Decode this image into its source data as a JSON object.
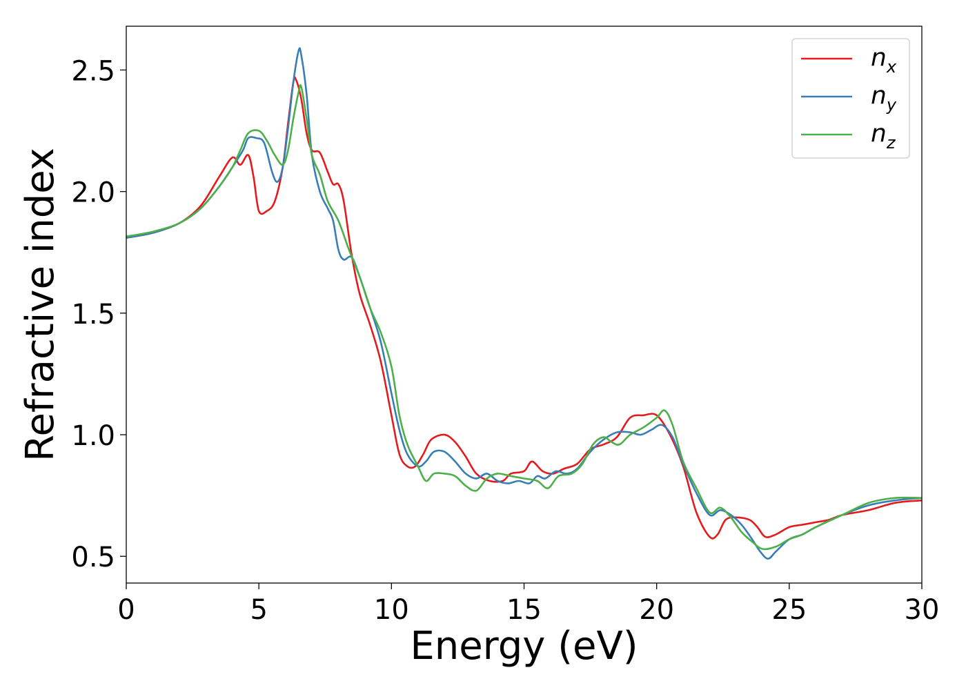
{
  "chart_data": {
    "type": "line",
    "title": "",
    "xlabel": "Energy (eV)",
    "ylabel": "Refractive index",
    "xlim": [
      0,
      30
    ],
    "ylim": [
      0.39,
      2.68
    ],
    "xticks": [
      0,
      5,
      10,
      15,
      20,
      25,
      30
    ],
    "xtick_labels": [
      "0",
      "5",
      "10",
      "15",
      "20",
      "25",
      "30"
    ],
    "yticks": [
      0.5,
      1.0,
      1.5,
      2.0,
      2.5
    ],
    "ytick_labels": [
      "0.5",
      "1.0",
      "1.5",
      "2.0",
      "2.5"
    ],
    "grid": false,
    "legend_position": "top-right",
    "series": [
      {
        "name": "n_x",
        "label_main": "n",
        "label_sub": "x",
        "color": "#e41a1c",
        "points": [
          [
            0,
            1.81
          ],
          [
            1,
            1.83
          ],
          [
            2,
            1.87
          ],
          [
            2.8,
            1.94
          ],
          [
            3.5,
            2.06
          ],
          [
            4,
            2.14
          ],
          [
            4.3,
            2.11
          ],
          [
            4.6,
            2.15
          ],
          [
            4.8,
            2.06
          ],
          [
            5.0,
            1.92
          ],
          [
            5.3,
            1.92
          ],
          [
            5.6,
            1.96
          ],
          [
            5.9,
            2.1
          ],
          [
            6.1,
            2.28
          ],
          [
            6.3,
            2.45
          ],
          [
            6.4,
            2.46
          ],
          [
            6.6,
            2.38
          ],
          [
            6.8,
            2.24
          ],
          [
            7.0,
            2.17
          ],
          [
            7.3,
            2.16
          ],
          [
            7.6,
            2.08
          ],
          [
            7.8,
            2.03
          ],
          [
            8.0,
            2.03
          ],
          [
            8.2,
            1.96
          ],
          [
            8.5,
            1.74
          ],
          [
            8.8,
            1.58
          ],
          [
            9.2,
            1.45
          ],
          [
            9.6,
            1.3
          ],
          [
            10.0,
            1.08
          ],
          [
            10.3,
            0.92
          ],
          [
            10.6,
            0.87
          ],
          [
            10.9,
            0.87
          ],
          [
            11.2,
            0.92
          ],
          [
            11.5,
            0.98
          ],
          [
            12.0,
            1.0
          ],
          [
            12.4,
            0.97
          ],
          [
            12.8,
            0.91
          ],
          [
            13.2,
            0.84
          ],
          [
            13.7,
            0.81
          ],
          [
            14.2,
            0.81
          ],
          [
            14.5,
            0.84
          ],
          [
            15.0,
            0.85
          ],
          [
            15.3,
            0.89
          ],
          [
            15.7,
            0.85
          ],
          [
            16.1,
            0.84
          ],
          [
            16.5,
            0.86
          ],
          [
            17.0,
            0.88
          ],
          [
            17.5,
            0.94
          ],
          [
            18.0,
            0.96
          ],
          [
            18.5,
            0.99
          ],
          [
            19.0,
            1.07
          ],
          [
            19.5,
            1.08
          ],
          [
            20.0,
            1.08
          ],
          [
            20.5,
            1.0
          ],
          [
            21.0,
            0.87
          ],
          [
            21.5,
            0.68
          ],
          [
            22.0,
            0.58
          ],
          [
            22.3,
            0.59
          ],
          [
            22.6,
            0.65
          ],
          [
            23.0,
            0.66
          ],
          [
            23.5,
            0.65
          ],
          [
            23.8,
            0.62
          ],
          [
            24.1,
            0.58
          ],
          [
            24.5,
            0.59
          ],
          [
            25.0,
            0.62
          ],
          [
            25.5,
            0.63
          ],
          [
            26.0,
            0.64
          ],
          [
            26.5,
            0.65
          ],
          [
            27.0,
            0.67
          ],
          [
            28.0,
            0.69
          ],
          [
            29.0,
            0.72
          ],
          [
            30.0,
            0.73
          ]
        ]
      },
      {
        "name": "n_y",
        "label_main": "n",
        "label_sub": "y",
        "color": "#377eb8",
        "points": [
          [
            0,
            1.81
          ],
          [
            1,
            1.83
          ],
          [
            2,
            1.87
          ],
          [
            2.8,
            1.93
          ],
          [
            3.5,
            2.02
          ],
          [
            4.0,
            2.1
          ],
          [
            4.4,
            2.17
          ],
          [
            4.6,
            2.22
          ],
          [
            4.9,
            2.22
          ],
          [
            5.2,
            2.2
          ],
          [
            5.5,
            2.08
          ],
          [
            5.7,
            2.04
          ],
          [
            5.9,
            2.1
          ],
          [
            6.1,
            2.26
          ],
          [
            6.3,
            2.45
          ],
          [
            6.5,
            2.58
          ],
          [
            6.6,
            2.56
          ],
          [
            6.8,
            2.4
          ],
          [
            7.0,
            2.15
          ],
          [
            7.3,
            2.0
          ],
          [
            7.6,
            1.93
          ],
          [
            7.8,
            1.88
          ],
          [
            8.0,
            1.76
          ],
          [
            8.2,
            1.72
          ],
          [
            8.5,
            1.73
          ],
          [
            8.8,
            1.65
          ],
          [
            9.2,
            1.52
          ],
          [
            9.6,
            1.38
          ],
          [
            10.0,
            1.17
          ],
          [
            10.3,
            1.02
          ],
          [
            10.6,
            0.92
          ],
          [
            11.0,
            0.87
          ],
          [
            11.3,
            0.89
          ],
          [
            11.6,
            0.93
          ],
          [
            12.0,
            0.93
          ],
          [
            12.4,
            0.89
          ],
          [
            12.8,
            0.84
          ],
          [
            13.2,
            0.82
          ],
          [
            13.6,
            0.84
          ],
          [
            14.0,
            0.81
          ],
          [
            14.4,
            0.8
          ],
          [
            14.8,
            0.81
          ],
          [
            15.2,
            0.8
          ],
          [
            15.5,
            0.83
          ],
          [
            15.8,
            0.82
          ],
          [
            16.2,
            0.85
          ],
          [
            16.6,
            0.84
          ],
          [
            17.0,
            0.86
          ],
          [
            17.5,
            0.93
          ],
          [
            18.0,
            0.98
          ],
          [
            18.5,
            1.01
          ],
          [
            19.0,
            1.01
          ],
          [
            19.4,
            1.0
          ],
          [
            19.8,
            1.02
          ],
          [
            20.2,
            1.04
          ],
          [
            20.6,
            0.99
          ],
          [
            21.0,
            0.88
          ],
          [
            21.5,
            0.76
          ],
          [
            22.0,
            0.67
          ],
          [
            22.4,
            0.69
          ],
          [
            22.8,
            0.67
          ],
          [
            23.2,
            0.63
          ],
          [
            23.6,
            0.57
          ],
          [
            23.9,
            0.52
          ],
          [
            24.2,
            0.49
          ],
          [
            24.5,
            0.52
          ],
          [
            25.0,
            0.57
          ],
          [
            25.5,
            0.59
          ],
          [
            26.0,
            0.62
          ],
          [
            27.0,
            0.67
          ],
          [
            28.0,
            0.71
          ],
          [
            29.0,
            0.73
          ],
          [
            30.0,
            0.74
          ]
        ]
      },
      {
        "name": "n_z",
        "label_main": "n",
        "label_sub": "z",
        "color": "#4daf4a",
        "points": [
          [
            0,
            1.815
          ],
          [
            1,
            1.835
          ],
          [
            2,
            1.87
          ],
          [
            2.8,
            1.93
          ],
          [
            3.5,
            2.02
          ],
          [
            4.0,
            2.1
          ],
          [
            4.3,
            2.17
          ],
          [
            4.6,
            2.24
          ],
          [
            5.0,
            2.25
          ],
          [
            5.3,
            2.21
          ],
          [
            5.6,
            2.15
          ],
          [
            5.9,
            2.11
          ],
          [
            6.1,
            2.17
          ],
          [
            6.3,
            2.3
          ],
          [
            6.5,
            2.41
          ],
          [
            6.6,
            2.43
          ],
          [
            6.8,
            2.3
          ],
          [
            7.0,
            2.15
          ],
          [
            7.3,
            2.07
          ],
          [
            7.6,
            1.96
          ],
          [
            8.0,
            1.88
          ],
          [
            8.4,
            1.76
          ],
          [
            8.8,
            1.65
          ],
          [
            9.2,
            1.52
          ],
          [
            9.6,
            1.42
          ],
          [
            10.0,
            1.28
          ],
          [
            10.3,
            1.08
          ],
          [
            10.6,
            0.96
          ],
          [
            11.0,
            0.87
          ],
          [
            11.3,
            0.81
          ],
          [
            11.6,
            0.84
          ],
          [
            12.0,
            0.84
          ],
          [
            12.4,
            0.83
          ],
          [
            12.8,
            0.79
          ],
          [
            13.2,
            0.77
          ],
          [
            13.6,
            0.82
          ],
          [
            14.0,
            0.84
          ],
          [
            14.5,
            0.83
          ],
          [
            15.0,
            0.82
          ],
          [
            15.5,
            0.81
          ],
          [
            15.9,
            0.78
          ],
          [
            16.3,
            0.83
          ],
          [
            16.8,
            0.84
          ],
          [
            17.2,
            0.88
          ],
          [
            17.6,
            0.96
          ],
          [
            18.0,
            0.99
          ],
          [
            18.3,
            0.97
          ],
          [
            18.6,
            0.96
          ],
          [
            19.0,
            1.0
          ],
          [
            19.5,
            1.03
          ],
          [
            20.0,
            1.07
          ],
          [
            20.3,
            1.1
          ],
          [
            20.6,
            1.04
          ],
          [
            21.0,
            0.89
          ],
          [
            21.5,
            0.78
          ],
          [
            22.0,
            0.68
          ],
          [
            22.4,
            0.7
          ],
          [
            22.8,
            0.66
          ],
          [
            23.2,
            0.6
          ],
          [
            23.6,
            0.56
          ],
          [
            24.0,
            0.53
          ],
          [
            24.5,
            0.54
          ],
          [
            25.0,
            0.57
          ],
          [
            25.5,
            0.59
          ],
          [
            26.0,
            0.62
          ],
          [
            27.0,
            0.67
          ],
          [
            28.0,
            0.72
          ],
          [
            29.0,
            0.74
          ],
          [
            30.0,
            0.74
          ]
        ]
      }
    ]
  }
}
